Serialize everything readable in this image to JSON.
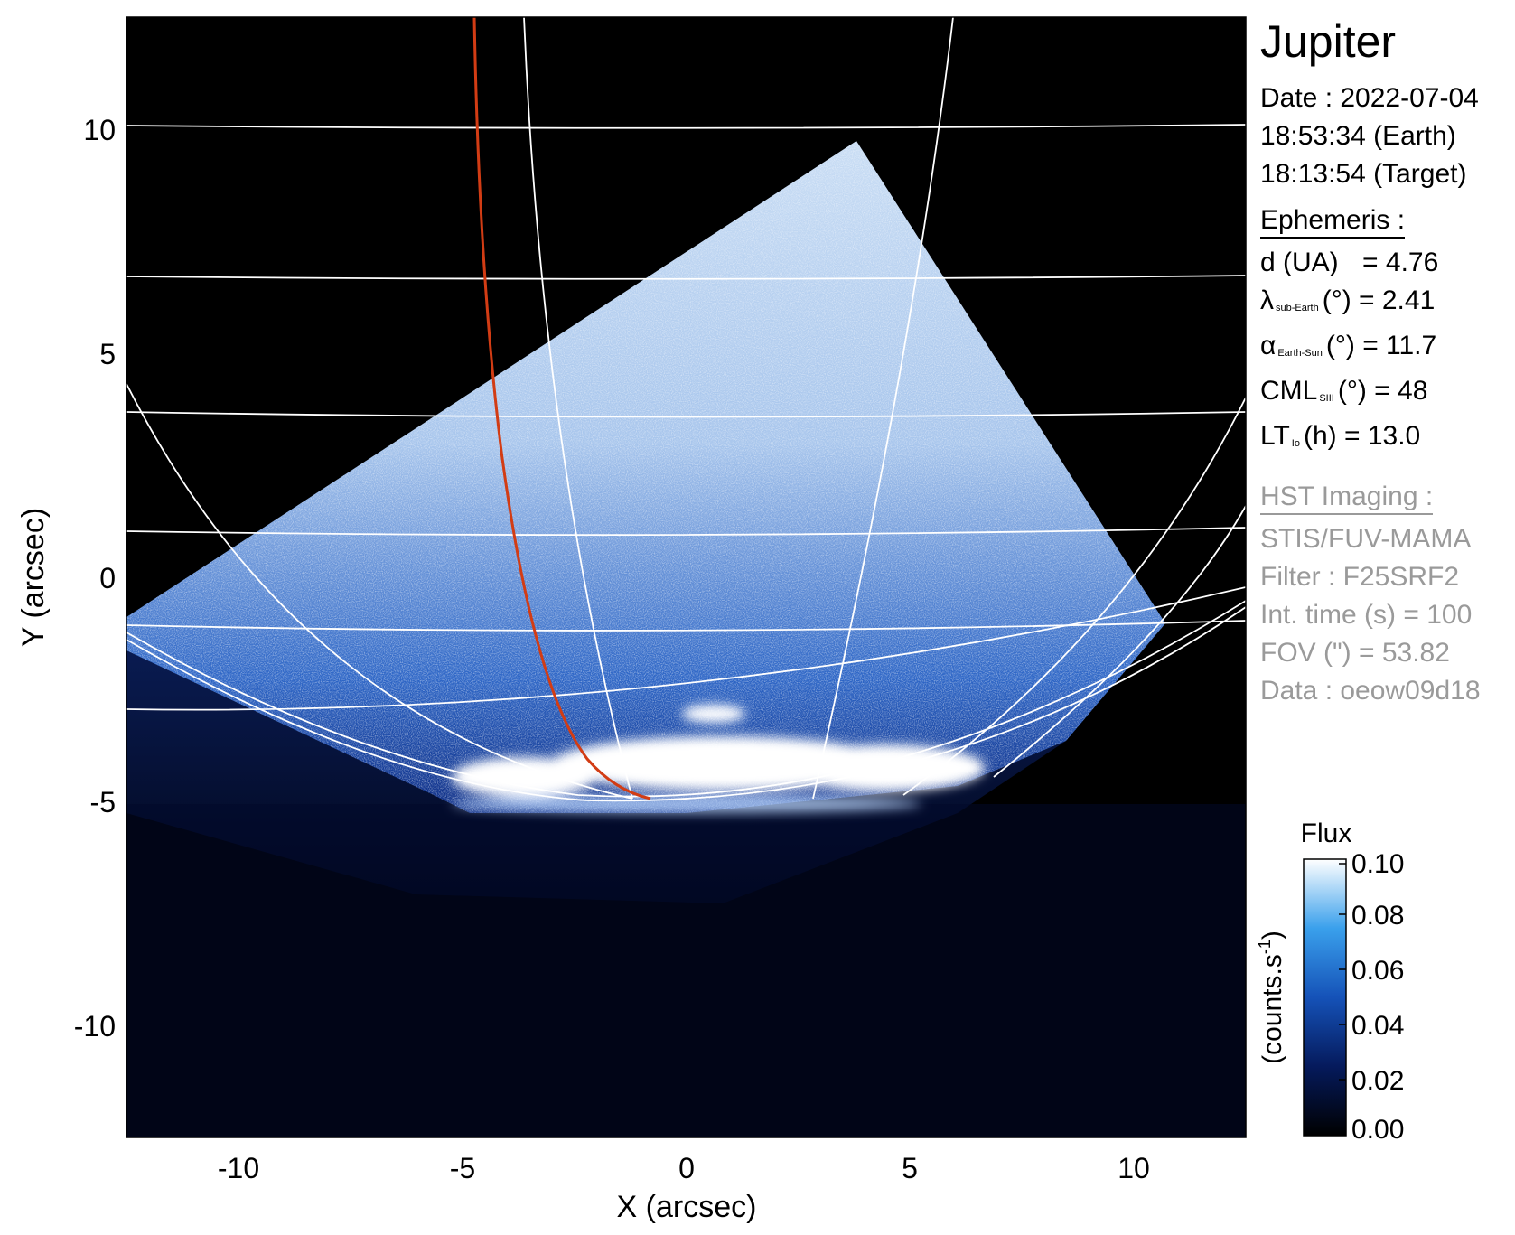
{
  "image": {
    "x_axis": {
      "label": "X (arcsec)",
      "ticks": [
        "-10",
        "-5",
        "0",
        "5",
        "10"
      ],
      "range": [
        -12.5,
        12.5
      ]
    },
    "y_axis": {
      "label": "Y (arcsec)",
      "ticks": [
        "10",
        "5",
        "0",
        "-5",
        "-10"
      ],
      "range": [
        -12.5,
        12.5
      ]
    },
    "colors": {
      "background": "#000000",
      "grid": "#ffffff",
      "meridian_highlight": "#d23c14",
      "colormap_low": "#000000",
      "colormap_mid": "#1e64d2",
      "colormap_high": "#ffffff"
    }
  },
  "panel": {
    "title": "Jupiter",
    "date_line": "Date : 2022-07-04",
    "earth_time": "18:53:34 (Earth)",
    "target_time": "18:13:54 (Target)",
    "ephemeris_head": "Ephemeris :",
    "d_label": "d (UA)",
    "d_value": "= 4.76",
    "lambda_symbol": "λ",
    "lambda_sub": "sub-Earth",
    "lambda_value": "(°) = 2.41",
    "alpha_symbol": "α",
    "alpha_sub": "Earth-Sun",
    "alpha_value": "(°) = 11.7",
    "cml_symbol": "CML",
    "cml_sub": "SIII",
    "cml_value": "(°) = 48",
    "lt_symbol": "LT",
    "lt_sub": "Io",
    "lt_value": "(h) = 13.0",
    "hst_head": "HST Imaging :",
    "instrument": "STIS/FUV-MAMA",
    "filter": "Filter : F25SRF2",
    "int_time": "Int. time (s) = 100",
    "fov": "FOV (\") = 53.82",
    "data_id": "Data : oeow09d18"
  },
  "colorbar": {
    "title": "Flux",
    "unit": "(counts.s",
    "unit_sup": "-1",
    "unit_close": ")",
    "ticks": [
      "0.10",
      "0.08",
      "0.06",
      "0.04",
      "0.02",
      "0.00"
    ]
  }
}
